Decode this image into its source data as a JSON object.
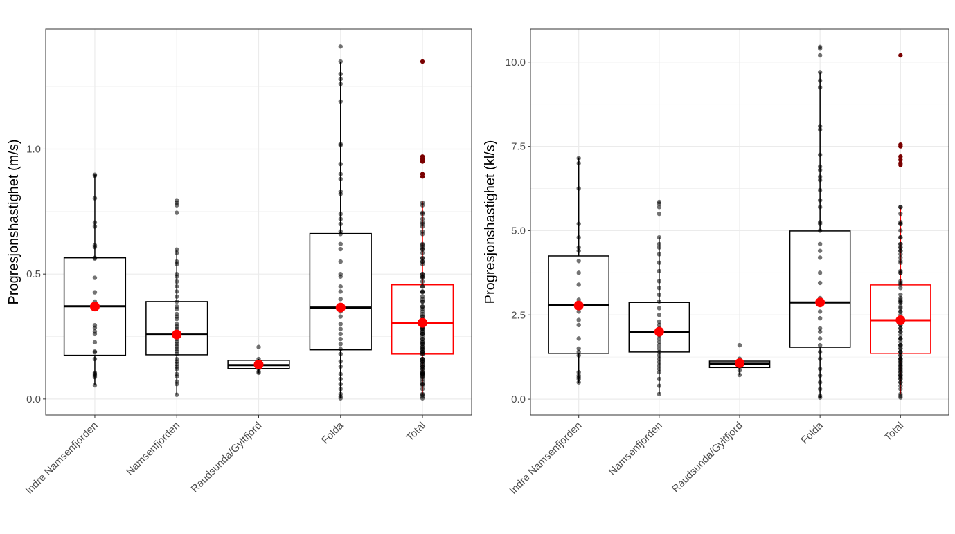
{
  "chart_data": [
    {
      "type": "box",
      "ylabel": "Progresjonshastighet (m/s)",
      "ylim": [
        -0.064,
        1.48
      ],
      "yticks": [
        0.0,
        0.5,
        1.0
      ],
      "ytick_labels": [
        "0.0",
        "0.5",
        "1.0"
      ],
      "grid": true,
      "categories": [
        "Indre Namsenfjorden",
        "Namsenfjorden",
        "Raudsunda/Gyltfjord",
        "Folda",
        "Total"
      ],
      "colors": {
        "box": "#000000",
        "total_box": "#ff0000",
        "mean": "#ff0000",
        "point": "#000000",
        "total_outlier": "#7a0000"
      },
      "groups": [
        {
          "q1": 0.175,
          "median": 0.371,
          "q3": 0.565,
          "whisker_low": 0.058,
          "whisker_high": 0.897,
          "mean": 0.37,
          "points": [
            0.897,
            0.893,
            0.803,
            0.706,
            0.69,
            0.615,
            0.608,
            0.565,
            0.562,
            0.485,
            0.427,
            0.39,
            0.295,
            0.285,
            0.27,
            0.26,
            0.227,
            0.19,
            0.187,
            0.16,
            0.105,
            0.1,
            0.095,
            0.088,
            0.055
          ]
        },
        {
          "q1": 0.177,
          "median": 0.258,
          "q3": 0.39,
          "whisker_low": 0.017,
          "whisker_high": 0.598,
          "mean": 0.258,
          "points": [
            0.795,
            0.785,
            0.775,
            0.745,
            0.598,
            0.585,
            0.55,
            0.54,
            0.5,
            0.49,
            0.47,
            0.45,
            0.43,
            0.41,
            0.39,
            0.37,
            0.36,
            0.34,
            0.33,
            0.32,
            0.3,
            0.29,
            0.28,
            0.27,
            0.26,
            0.25,
            0.24,
            0.23,
            0.22,
            0.21,
            0.2,
            0.19,
            0.18,
            0.16,
            0.15,
            0.14,
            0.13,
            0.12,
            0.1,
            0.09,
            0.07,
            0.06,
            0.017
          ]
        },
        {
          "q1": 0.122,
          "median": 0.136,
          "q3": 0.155,
          "whisker_low": 0.105,
          "whisker_high": 0.16,
          "mean": 0.138,
          "points": [
            0.208,
            0.16,
            0.15,
            0.14,
            0.13,
            0.12,
            0.11,
            0.105
          ]
        },
        {
          "q1": 0.197,
          "median": 0.366,
          "q3": 0.662,
          "whisker_low": 0.003,
          "whisker_high": 1.35,
          "mean": 0.366,
          "points": [
            1.41,
            1.35,
            1.3,
            1.28,
            1.26,
            1.19,
            1.02,
            1.015,
            0.94,
            0.9,
            0.88,
            0.83,
            0.82,
            0.74,
            0.72,
            0.7,
            0.67,
            0.66,
            0.62,
            0.6,
            0.55,
            0.5,
            0.49,
            0.45,
            0.43,
            0.4,
            0.37,
            0.35,
            0.33,
            0.3,
            0.28,
            0.26,
            0.24,
            0.22,
            0.2,
            0.18,
            0.15,
            0.13,
            0.1,
            0.08,
            0.06,
            0.04,
            0.02,
            0.01,
            0.003
          ]
        },
        {
          "q1": 0.18,
          "median": 0.305,
          "q3": 0.457,
          "whisker_low": 0.017,
          "whisker_high": 0.79,
          "mean": 0.305,
          "outliers": [
            1.35,
            0.97,
            0.96,
            0.95,
            0.9,
            0.89
          ]
        }
      ]
    },
    {
      "type": "box",
      "ylabel": "Progresjonshastighet (kl/s)",
      "ylim": [
        -0.47,
        10.98
      ],
      "yticks": [
        0.0,
        2.5,
        5.0,
        7.5,
        10.0
      ],
      "ytick_labels": [
        "0.0",
        "2.5",
        "5.0",
        "7.5",
        "10.0"
      ],
      "grid": true,
      "categories": [
        "Indre Namsenfjorden",
        "Namsenfjorden",
        "Raudsunda/Gyltfjord",
        "Folda",
        "Total"
      ],
      "colors": {
        "box": "#000000",
        "total_box": "#ff0000",
        "mean": "#ff0000",
        "point": "#000000",
        "total_outlier": "#7a0000"
      },
      "groups": [
        {
          "q1": 1.36,
          "median": 2.79,
          "q3": 4.25,
          "whisker_low": 0.49,
          "whisker_high": 7.17,
          "mean": 2.78,
          "points": [
            7.15,
            7.0,
            6.25,
            5.2,
            4.8,
            4.5,
            4.4,
            4.1,
            3.75,
            3.4,
            2.95,
            2.85,
            2.75,
            2.6,
            2.35,
            2.2,
            1.8,
            1.5,
            1.4,
            1.3,
            0.8,
            0.7,
            0.65,
            0.6,
            0.5
          ]
        },
        {
          "q1": 1.4,
          "median": 1.99,
          "q3": 2.87,
          "whisker_low": 0.14,
          "whisker_high": 4.8,
          "mean": 2.0,
          "points": [
            5.85,
            5.8,
            5.7,
            5.5,
            4.8,
            4.6,
            4.5,
            4.3,
            4.05,
            3.8,
            3.5,
            3.3,
            3.1,
            2.9,
            2.7,
            2.5,
            2.3,
            2.2,
            2.1,
            2.0,
            1.9,
            1.8,
            1.7,
            1.6,
            1.5,
            1.4,
            1.3,
            1.2,
            1.1,
            1.0,
            0.9,
            0.8,
            0.6,
            0.4,
            0.15
          ]
        },
        {
          "q1": 0.94,
          "median": 1.05,
          "q3": 1.13,
          "whisker_low": 0.72,
          "whisker_high": 1.2,
          "mean": 1.07,
          "points": [
            1.6,
            1.2,
            1.15,
            1.1,
            1.05,
            1.0,
            0.95,
            0.85,
            0.72
          ]
        },
        {
          "q1": 1.54,
          "median": 2.87,
          "q3": 4.99,
          "whisker_low": 0.04,
          "whisker_high": 9.7,
          "mean": 2.87,
          "points": [
            10.45,
            10.4,
            10.2,
            9.7,
            9.45,
            9.25,
            8.1,
            8.0,
            7.25,
            6.9,
            6.8,
            6.6,
            6.5,
            6.2,
            5.9,
            5.7,
            5.25,
            5.2,
            5.0,
            4.6,
            4.4,
            4.2,
            3.75,
            3.45,
            3.0,
            2.9,
            2.6,
            2.4,
            2.1,
            2.0,
            1.8,
            1.6,
            1.4,
            1.2,
            0.9,
            0.7,
            0.5,
            0.3,
            0.1,
            0.05
          ]
        },
        {
          "q1": 1.36,
          "median": 2.34,
          "q3": 3.39,
          "whisker_low": 0.14,
          "whisker_high": 5.7,
          "mean": 2.34,
          "outliers": [
            10.2,
            7.55,
            7.5,
            7.2,
            7.1,
            7.0,
            6.95
          ]
        }
      ]
    }
  ]
}
